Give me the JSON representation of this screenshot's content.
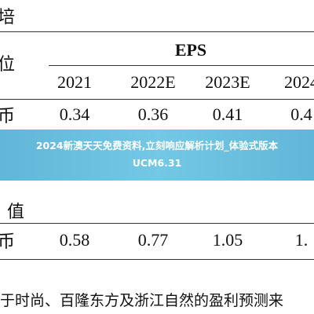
{
  "header": {
    "left": "培",
    "group": "EPS"
  },
  "table": {
    "unit_label": "位",
    "columns": [
      "2021",
      "2022E",
      "2023E",
      "2024"
    ],
    "rows": [
      [
        "币",
        "0.34",
        "0.36",
        "0.41",
        "0.4"
      ]
    ],
    "section_label": "值",
    "rows2": [
      [
        "币",
        "0.58",
        "0.77",
        "1.05",
        "1."
      ]
    ]
  },
  "banner": {
    "title": "2024新澳天天免费资料,立刻响应解析计划_体验式版本UCM6.31"
  },
  "footer": {
    "text": "于时尚、百隆东方及浙江自然的盈利预测来"
  }
}
